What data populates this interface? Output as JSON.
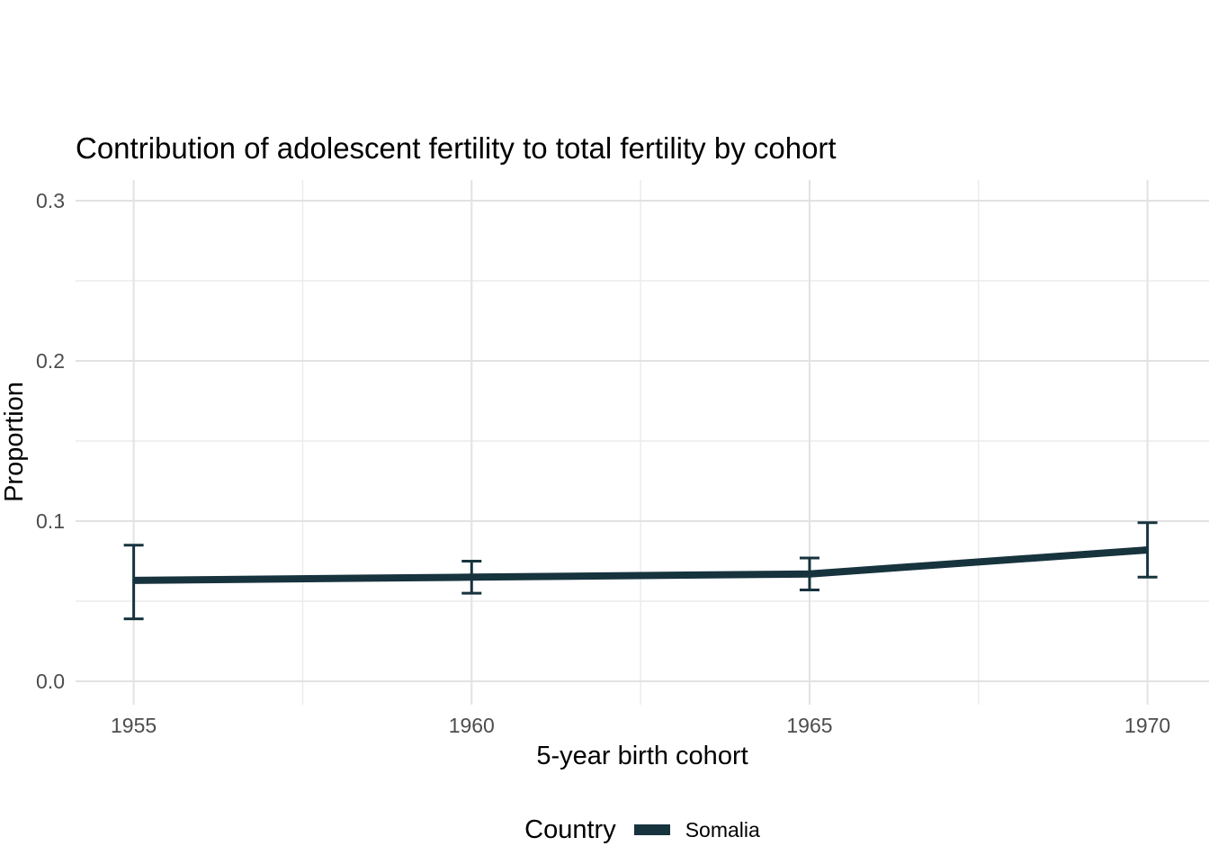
{
  "title": "Contribution of adolescent fertility to total fertility by cohort",
  "chart_data": {
    "type": "line",
    "title": "Contribution of adolescent fertility to total fertility by cohort",
    "xlabel": "5-year birth cohort",
    "ylabel": "Proportion",
    "x": [
      1955,
      1960,
      1965,
      1970
    ],
    "series": [
      {
        "name": "Somalia",
        "color": "#17333e",
        "values": [
          0.063,
          0.065,
          0.067,
          0.082
        ],
        "ci_low": [
          0.039,
          0.055,
          0.057,
          0.065
        ],
        "ci_high": [
          0.085,
          0.075,
          0.077,
          0.099
        ]
      }
    ],
    "x_ticks": [
      1955,
      1960,
      1965,
      1970
    ],
    "x_tick_labels": [
      "1955",
      "1960",
      "1965",
      "1970"
    ],
    "x_minor_ticks": [
      1957.5,
      1962.5,
      1967.5
    ],
    "y_ticks": [
      0,
      0.1,
      0.2,
      0.3
    ],
    "y_tick_labels": [
      "0.0",
      "0.1",
      "0.2",
      "0.3"
    ],
    "y_minor_ticks": [
      0.05,
      0.15,
      0.25
    ],
    "xlim": [
      1954.14,
      1970.91
    ],
    "ylim": [
      -0.0146,
      0.3129
    ],
    "grid": true,
    "legend": {
      "title": "Country",
      "position": "bottom",
      "entries": [
        {
          "label": "Somalia",
          "color": "#17333e"
        }
      ]
    },
    "colors": {
      "grid_major": "#e2e2e2",
      "grid_minor": "#ececec",
      "tick_label": "#4d4d4d",
      "text": "#000000",
      "background": "#ffffff"
    }
  }
}
